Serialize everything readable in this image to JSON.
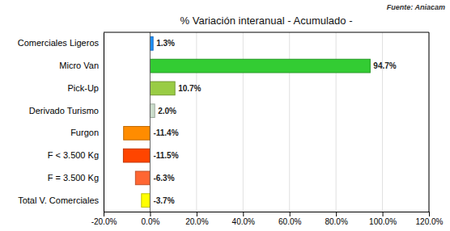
{
  "chart_data": {
    "type": "bar",
    "orientation": "horizontal",
    "title": "% Variación interanual - Acumulado -",
    "annotations": [
      "Fuente: Aniacam"
    ],
    "categories": [
      "Comerciales Ligeros",
      "Micro Van",
      "Pick-Up",
      "Derivado Turismo",
      "Furgon",
      "F < 3.500 Kg",
      "F = 3.500 Kg",
      "Total V. Comerciales"
    ],
    "values": [
      1.3,
      94.7,
      10.7,
      2.0,
      -11.4,
      -11.5,
      -6.3,
      -3.7
    ],
    "value_labels": [
      "1.3%",
      "94.7%",
      "10.7%",
      "2.0%",
      "-11.4%",
      "-11.5%",
      "-6.3%",
      "-3.7%"
    ],
    "colors": [
      "#1E90FF",
      "#33CC33",
      "#99CC44",
      "#CCDDCC",
      "#FF8C00",
      "#FF4500",
      "#FF6633",
      "#FFFF00"
    ],
    "xlim": [
      -20.0,
      120.0
    ],
    "xticks": [
      {
        "value": -20.0,
        "label": "-20.0%"
      },
      {
        "value": 0.0,
        "label": "0.0%"
      },
      {
        "value": 20.0,
        "label": "20.0%"
      },
      {
        "value": 40.0,
        "label": "40.0%"
      },
      {
        "value": 60.0,
        "label": "60.0%"
      },
      {
        "value": 80.0,
        "label": "80.0%"
      },
      {
        "value": 100.0,
        "label": "100.0%"
      },
      {
        "value": 120.0,
        "label": "120.0%"
      }
    ],
    "grid": true,
    "data_labels": true
  }
}
